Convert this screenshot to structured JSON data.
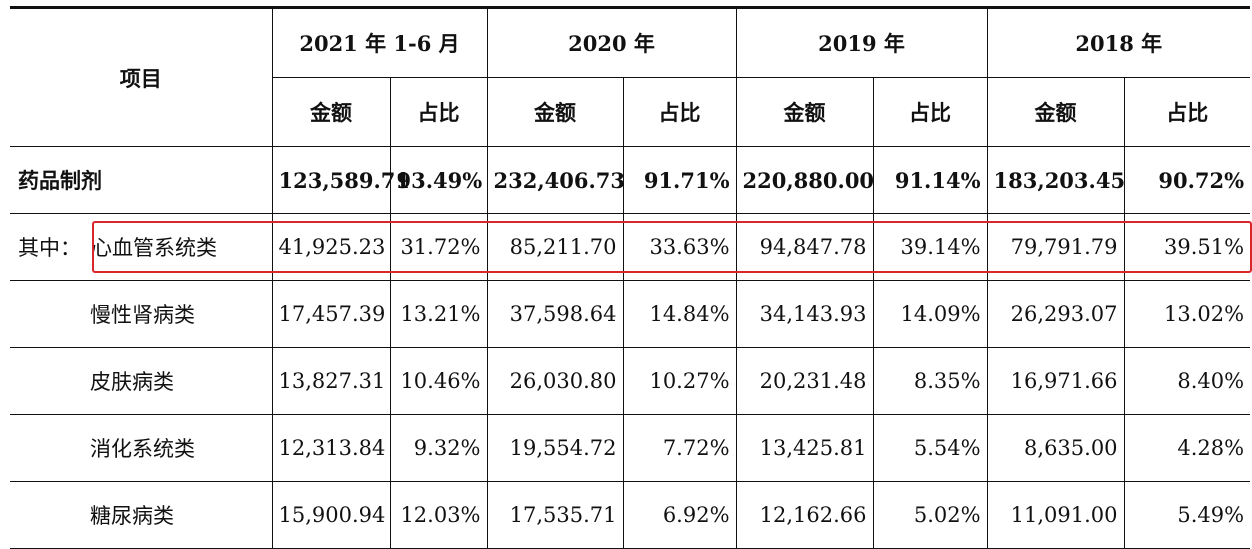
{
  "header": {
    "item_label": "项目",
    "periods": [
      "2021 年 1-6 月",
      "2020 年",
      "2019 年",
      "2018 年"
    ],
    "amount_label": "金额",
    "ratio_label": "占比"
  },
  "total_row": {
    "label": "药品制剂",
    "cells": [
      "123,589.71",
      "93.49%",
      "232,406.73",
      "91.71%",
      "220,880.00",
      "91.14%",
      "183,203.45",
      "90.72%"
    ]
  },
  "detail_prefix": "其中：",
  "rows": [
    {
      "label": "心血管系统类",
      "cells": [
        "41,925.23",
        "31.72%",
        "85,211.70",
        "33.63%",
        "94,847.78",
        "39.14%",
        "79,791.79",
        "39.51%"
      ]
    },
    {
      "label": "慢性肾病类",
      "cells": [
        "17,457.39",
        "13.21%",
        "37,598.64",
        "14.84%",
        "34,143.93",
        "14.09%",
        "26,293.07",
        "13.02%"
      ]
    },
    {
      "label": "皮肤病类",
      "cells": [
        "13,827.31",
        "10.46%",
        "26,030.80",
        "10.27%",
        "20,231.48",
        "8.35%",
        "16,971.66",
        "8.40%"
      ]
    },
    {
      "label": "消化系统类",
      "cells": [
        "12,313.84",
        "9.32%",
        "19,554.72",
        "7.72%",
        "13,425.81",
        "5.54%",
        "8,635.00",
        "4.28%"
      ]
    },
    {
      "label": "糖尿病类",
      "cells": [
        "15,900.94",
        "12.03%",
        "17,535.71",
        "6.92%",
        "12,162.66",
        "5.02%",
        "11,091.00",
        "5.49%"
      ]
    }
  ],
  "colors": {
    "highlight": "#d9262b"
  }
}
